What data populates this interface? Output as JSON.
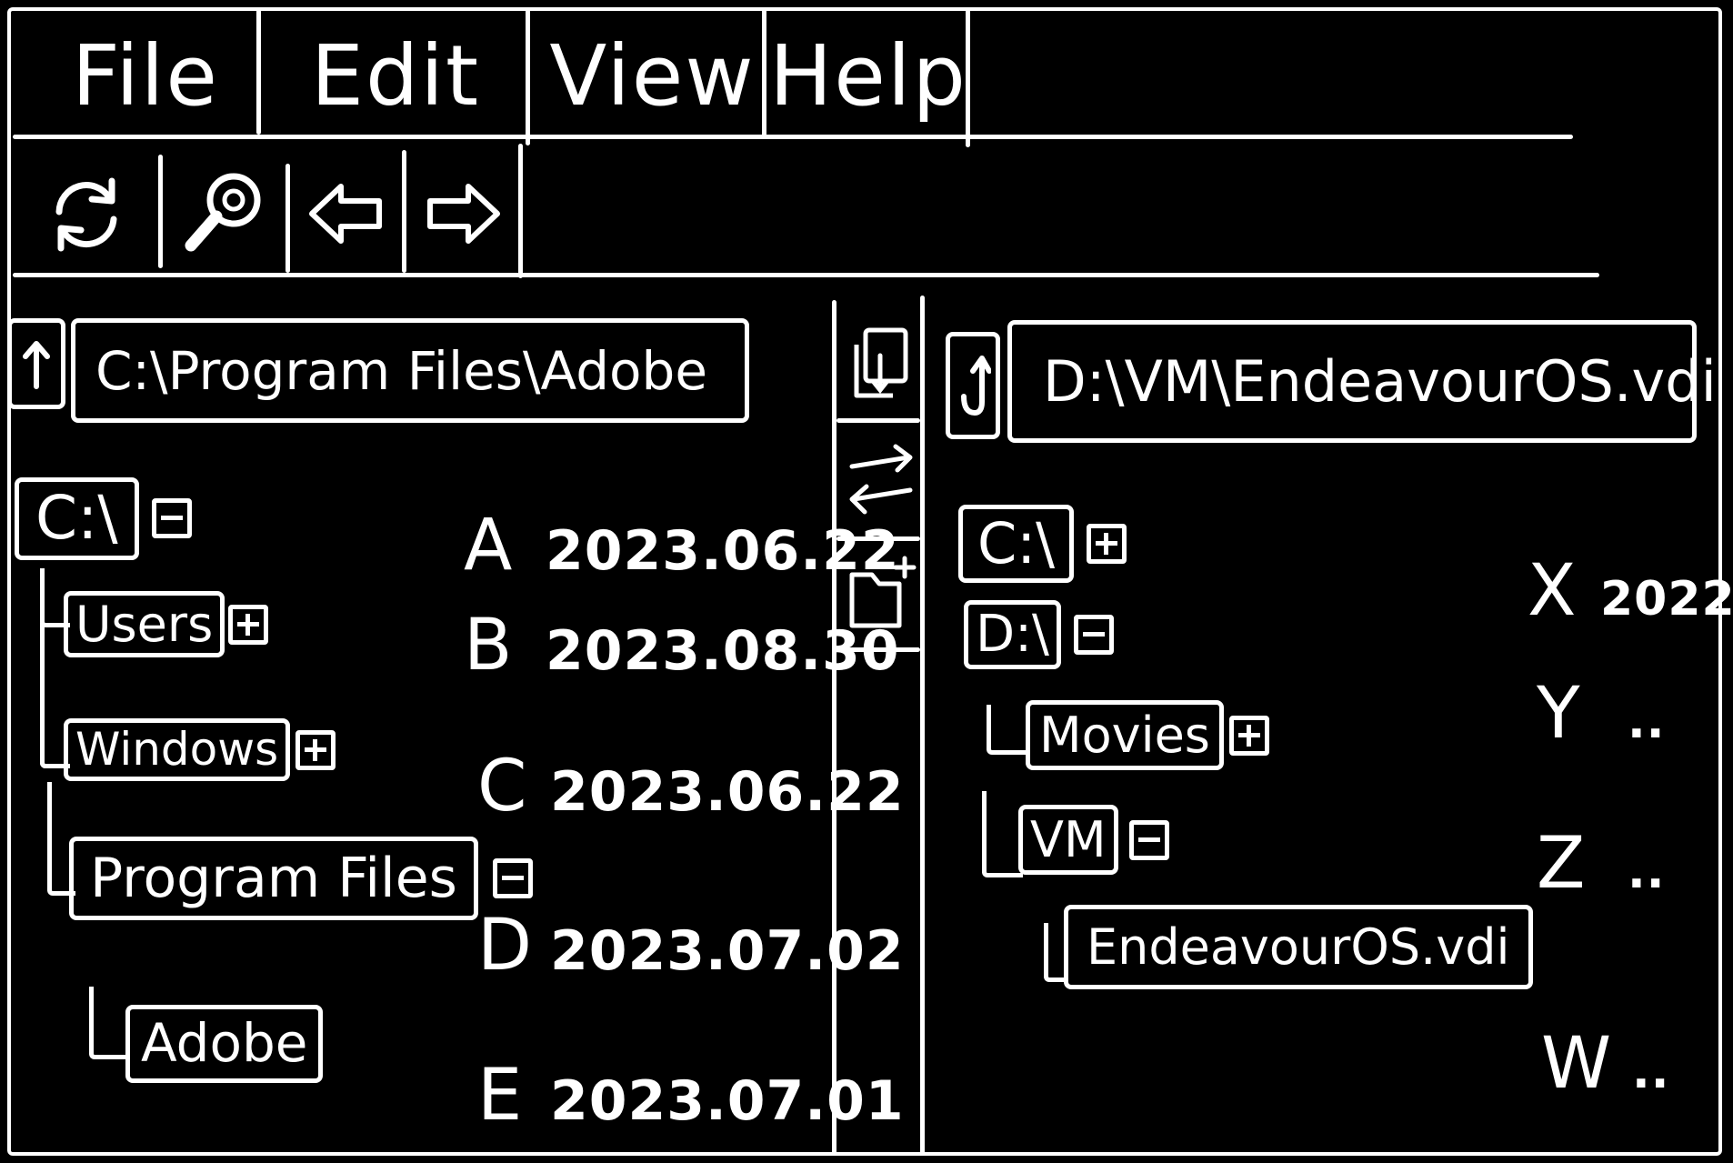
{
  "menu": {
    "file": "File",
    "edit": "Edit",
    "view": "View",
    "help": "Help"
  },
  "toolbar": {
    "icons": [
      "refresh-icon",
      "search-icon",
      "back-arrow-icon",
      "forward-arrow-icon"
    ]
  },
  "left_pane": {
    "path": "C:\\Program Files\\Adobe",
    "tree": {
      "root": "C:\\",
      "users": "Users",
      "windows": "Windows",
      "program_files": "Program Files",
      "adobe": "Adobe"
    },
    "files": [
      {
        "name": "A",
        "date": "2023.06.22"
      },
      {
        "name": "B",
        "date": "2023.08.30"
      },
      {
        "name": "C",
        "date": "2023.06.22"
      },
      {
        "name": "D",
        "date": "2023.07.02"
      },
      {
        "name": "E",
        "date": "2023.07.01"
      }
    ]
  },
  "middle_bar": {
    "icons": [
      "copy-icon",
      "swap-icon",
      "new-folder-icon"
    ]
  },
  "right_pane": {
    "path": "D:\\VM\\EndeavourOS.vdi",
    "tree": {
      "c_drive": "C:\\",
      "d_drive": "D:\\",
      "movies": "Movies",
      "vm": "VM",
      "vdi": "EndeavourOS.vdi"
    },
    "files": [
      {
        "name": "X",
        "date": "2022"
      },
      {
        "name": "Y",
        "date": ".."
      },
      {
        "name": "Z",
        "date": ".."
      },
      {
        "name": "W",
        "date": ".."
      }
    ]
  }
}
